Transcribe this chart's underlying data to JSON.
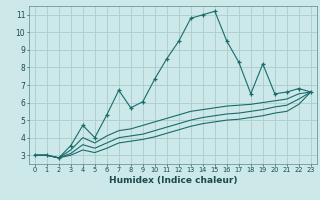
{
  "xlabel": "Humidex (Indice chaleur)",
  "bg_color": "#cce8e8",
  "grid_color": "#aacccc",
  "line_color": "#1a6b6b",
  "xlim": [
    -0.5,
    23.5
  ],
  "ylim": [
    2.5,
    11.5
  ],
  "xticks": [
    0,
    1,
    2,
    3,
    4,
    5,
    6,
    7,
    8,
    9,
    10,
    11,
    12,
    13,
    14,
    15,
    16,
    17,
    18,
    19,
    20,
    21,
    22,
    23
  ],
  "yticks": [
    3,
    4,
    5,
    6,
    7,
    8,
    9,
    10,
    11
  ],
  "series": [
    {
      "x": [
        0,
        1,
        2,
        3,
        4,
        5,
        6,
        7,
        8,
        9,
        10,
        11,
        12,
        13,
        14,
        15,
        16,
        17,
        18,
        19,
        20,
        21,
        22,
        23
      ],
      "y": [
        3.0,
        3.0,
        2.85,
        3.55,
        4.7,
        4.0,
        5.3,
        6.7,
        5.7,
        6.05,
        7.35,
        8.5,
        9.5,
        10.8,
        11.0,
        11.2,
        9.5,
        8.3,
        6.5,
        8.2,
        6.5,
        6.6,
        6.8,
        6.6
      ],
      "marker": "+"
    },
    {
      "x": [
        0,
        1,
        2,
        3,
        4,
        5,
        6,
        7,
        8,
        9,
        10,
        11,
        12,
        13,
        14,
        15,
        16,
        17,
        18,
        19,
        20,
        21,
        22,
        23
      ],
      "y": [
        3.0,
        3.0,
        2.85,
        3.3,
        4.0,
        3.7,
        4.1,
        4.4,
        4.5,
        4.7,
        4.9,
        5.1,
        5.3,
        5.5,
        5.6,
        5.7,
        5.8,
        5.85,
        5.9,
        6.0,
        6.1,
        6.2,
        6.5,
        6.6
      ],
      "marker": null
    },
    {
      "x": [
        0,
        1,
        2,
        3,
        4,
        5,
        6,
        7,
        8,
        9,
        10,
        11,
        12,
        13,
        14,
        15,
        16,
        17,
        18,
        19,
        20,
        21,
        22,
        23
      ],
      "y": [
        3.0,
        3.0,
        2.85,
        3.1,
        3.6,
        3.4,
        3.7,
        4.0,
        4.1,
        4.2,
        4.4,
        4.6,
        4.8,
        5.0,
        5.15,
        5.25,
        5.35,
        5.4,
        5.5,
        5.6,
        5.75,
        5.85,
        6.2,
        6.6
      ],
      "marker": null
    },
    {
      "x": [
        0,
        1,
        2,
        3,
        4,
        5,
        6,
        7,
        8,
        9,
        10,
        11,
        12,
        13,
        14,
        15,
        16,
        17,
        18,
        19,
        20,
        21,
        22,
        23
      ],
      "y": [
        3.0,
        3.0,
        2.85,
        3.0,
        3.3,
        3.15,
        3.4,
        3.7,
        3.8,
        3.9,
        4.05,
        4.25,
        4.45,
        4.65,
        4.8,
        4.9,
        5.0,
        5.05,
        5.15,
        5.25,
        5.4,
        5.5,
        5.9,
        6.6
      ],
      "marker": null
    }
  ]
}
